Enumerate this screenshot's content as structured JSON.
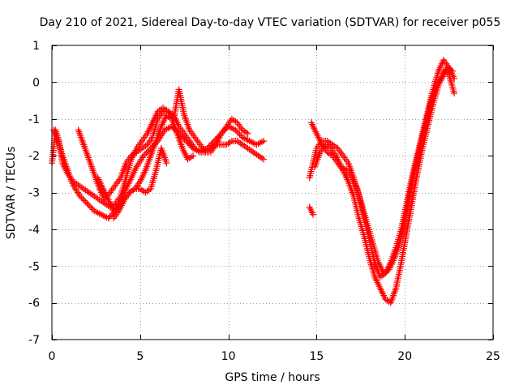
{
  "chart_data": {
    "type": "scatter",
    "title": "Day 210 of 2021, Sidereal Day-to-day VTEC variation (SDTVAR) for receiver p055",
    "xlabel": "GPS time / hours",
    "ylabel": "SDTVAR / TECUs",
    "xlim": [
      0,
      25
    ],
    "ylim": [
      -7,
      1
    ],
    "xticks": [
      0,
      5,
      10,
      15,
      20,
      25
    ],
    "yticks": [
      1,
      0,
      -1,
      -2,
      -3,
      -4,
      -5,
      -6,
      -7
    ],
    "grid": true,
    "marker": "+",
    "series": [
      {
        "name": "SDTVAR",
        "color": "#ff0000",
        "tracks": [
          {
            "x": [
              0.0,
              0.1,
              0.2,
              0.4,
              0.6,
              0.9,
              1.2,
              1.5,
              1.8,
              2.1,
              2.4,
              2.7,
              3.0,
              3.3,
              3.6,
              3.9,
              4.2,
              4.5,
              4.8,
              5.1,
              5.4,
              5.7,
              6.0,
              6.3,
              6.6,
              6.9,
              7.2,
              7.5,
              7.8,
              8.1,
              8.4,
              8.7,
              9.0,
              9.3,
              9.6,
              9.9,
              10.2,
              10.5,
              10.8,
              11.1,
              11.4,
              11.7,
              12.0
            ],
            "y": [
              -2.2,
              -1.8,
              -1.3,
              -1.6,
              -2.2,
              -2.5,
              -2.7,
              -2.8,
              -2.9,
              -3.0,
              -3.1,
              -3.2,
              -3.3,
              -3.4,
              -3.3,
              -3.1,
              -2.6,
              -2.1,
              -1.8,
              -1.6,
              -1.4,
              -1.1,
              -0.8,
              -0.7,
              -0.8,
              -0.9,
              -1.2,
              -1.4,
              -1.6,
              -1.8,
              -1.9,
              -1.9,
              -1.8,
              -1.7,
              -1.7,
              -1.7,
              -1.6,
              -1.6,
              -1.7,
              -1.8,
              -1.9,
              -2.0,
              -2.1
            ]
          },
          {
            "x": [
              0.1,
              0.3,
              0.6,
              0.9,
              1.2,
              1.6,
              2.0,
              2.4,
              2.8,
              3.2,
              3.6,
              4.0,
              4.4,
              4.8,
              5.2,
              5.6,
              6.0,
              6.4,
              6.8,
              7.2,
              7.6,
              8.0,
              8.4,
              8.8,
              9.2,
              9.6,
              10.0,
              10.4,
              10.8,
              11.2,
              11.6,
              12.0
            ],
            "y": [
              -1.3,
              -1.5,
              -2.0,
              -2.4,
              -2.8,
              -3.1,
              -3.3,
              -3.5,
              -3.6,
              -3.7,
              -3.5,
              -3.1,
              -2.7,
              -2.3,
              -2.0,
              -1.8,
              -1.6,
              -1.3,
              -1.2,
              -1.4,
              -1.6,
              -1.8,
              -1.9,
              -1.8,
              -1.6,
              -1.4,
              -1.2,
              -1.3,
              -1.5,
              -1.6,
              -1.7,
              -1.6
            ]
          },
          {
            "x": [
              1.5,
              1.8,
              2.1,
              2.4,
              2.7,
              3.0,
              3.3,
              3.6,
              3.9,
              4.2,
              4.5,
              4.8,
              5.1,
              5.4,
              5.7,
              6.0,
              6.3,
              6.6,
              6.9,
              7.2,
              7.5,
              7.8,
              8.1,
              8.4,
              8.7,
              9.0,
              9.3,
              9.6,
              9.9,
              10.2,
              10.5,
              10.8,
              11.1
            ],
            "y": [
              -1.3,
              -1.7,
              -2.1,
              -2.5,
              -2.9,
              -3.2,
              -3.0,
              -2.8,
              -2.6,
              -2.2,
              -2.0,
              -1.9,
              -1.8,
              -1.7,
              -1.5,
              -1.0,
              -0.8,
              -0.8,
              -1.0,
              -0.2,
              -0.9,
              -1.3,
              -1.5,
              -1.7,
              -1.9,
              -1.9,
              -1.7,
              -1.4,
              -1.2,
              -1.0,
              -1.1,
              -1.3,
              -1.4
            ]
          },
          {
            "x": [
              3.5,
              3.8,
              4.1,
              4.4,
              4.7,
              5.0,
              5.3,
              5.6,
              5.9,
              6.2,
              6.5,
              6.8,
              7.1,
              7.4,
              7.7,
              8.0
            ],
            "y": [
              -3.7,
              -3.5,
              -3.2,
              -3.0,
              -2.9,
              -2.7,
              -2.4,
              -2.0,
              -1.6,
              -1.2,
              -0.9,
              -1.0,
              -1.4,
              -1.8,
              -2.1,
              -2.0
            ]
          },
          {
            "x": [
              2.6,
              2.9,
              3.2,
              3.5,
              3.8,
              4.1,
              4.4,
              4.7,
              5.0,
              5.3,
              5.6,
              5.9,
              6.2,
              6.5
            ],
            "y": [
              -2.6,
              -2.9,
              -3.2,
              -3.5,
              -3.4,
              -3.2,
              -3.0,
              -2.9,
              -2.9,
              -3.0,
              -2.9,
              -2.4,
              -1.8,
              -2.2
            ]
          },
          {
            "x": [
              14.6,
              14.7,
              14.8
            ],
            "y": [
              -3.4,
              -3.5,
              -3.6
            ]
          },
          {
            "x": [
              14.6,
              14.8,
              15.0,
              15.3,
              15.6,
              15.9,
              16.2,
              16.5,
              16.8,
              17.1,
              17.4,
              17.7,
              18.0,
              18.3,
              18.6,
              18.9,
              19.2,
              19.5,
              19.8,
              20.1,
              20.4,
              20.7,
              21.0,
              21.3,
              21.6,
              21.9,
              22.2,
              22.5,
              22.8
            ],
            "y": [
              -2.6,
              -2.2,
              -1.8,
              -1.6,
              -1.6,
              -1.7,
              -1.8,
              -2.0,
              -2.2,
              -2.6,
              -3.1,
              -3.7,
              -4.3,
              -4.9,
              -5.3,
              -5.2,
              -4.9,
              -4.5,
              -4.0,
              -3.3,
              -2.6,
              -2.0,
              -1.4,
              -0.8,
              -0.2,
              0.3,
              0.6,
              0.4,
              0.1
            ]
          },
          {
            "x": [
              14.7,
              15.0,
              15.3,
              15.6,
              15.9,
              16.2,
              16.5,
              16.8,
              17.1,
              17.4,
              17.7,
              18.0,
              18.3,
              18.6,
              18.9,
              19.2,
              19.5,
              19.8,
              20.1,
              20.4,
              20.7,
              21.0,
              21.3,
              21.6,
              21.9,
              22.2,
              22.5,
              22.8
            ],
            "y": [
              -1.1,
              -1.4,
              -1.7,
              -1.9,
              -2.0,
              -2.2,
              -2.4,
              -2.7,
              -3.1,
              -3.7,
              -4.2,
              -4.8,
              -5.3,
              -5.6,
              -5.9,
              -6.0,
              -5.6,
              -4.9,
              -4.1,
              -3.3,
              -2.5,
              -1.8,
              -1.2,
              -0.6,
              -0.1,
              0.3,
              0.2,
              -0.3
            ]
          },
          {
            "x": [
              14.9,
              15.2,
              15.5,
              15.8,
              16.1,
              16.4,
              16.7,
              17.0,
              17.3,
              17.6,
              17.9,
              18.2,
              18.5,
              18.8,
              19.1,
              19.4,
              19.7,
              20.0,
              20.3,
              20.6,
              20.9,
              21.2,
              21.5,
              21.8,
              22.1,
              22.4,
              22.7
            ],
            "y": [
              -2.3,
              -1.9,
              -1.7,
              -1.8,
              -2.0,
              -2.3,
              -2.4,
              -2.6,
              -2.9,
              -3.4,
              -3.9,
              -4.4,
              -4.9,
              -5.2,
              -5.1,
              -4.8,
              -4.4,
              -3.8,
              -3.0,
              -2.3,
              -1.7,
              -1.1,
              -0.5,
              -0.1,
              0.1,
              0.4,
              0.3
            ]
          }
        ]
      }
    ]
  }
}
